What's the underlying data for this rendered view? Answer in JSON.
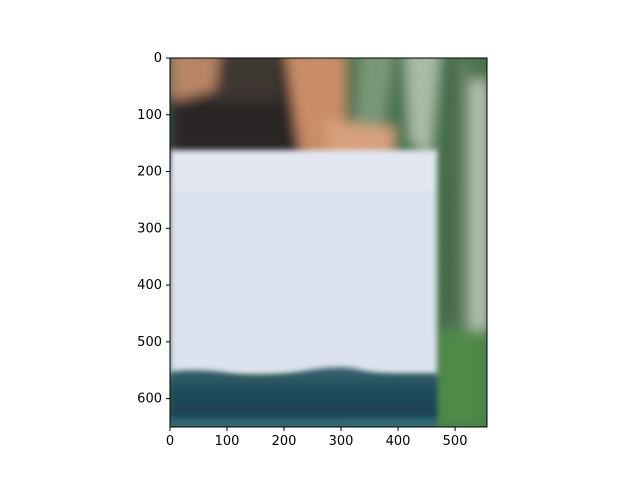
{
  "chart_data": {
    "type": "image",
    "title": "",
    "xlabel": "",
    "ylabel": "",
    "xlim": [
      0,
      556
    ],
    "ylim": [
      650,
      0
    ],
    "x_ticks": [
      {
        "value": 0,
        "label": "0"
      },
      {
        "value": 100,
        "label": "100"
      },
      {
        "value": 200,
        "label": "200"
      },
      {
        "value": 300,
        "label": "300"
      },
      {
        "value": 400,
        "label": "400"
      },
      {
        "value": 500,
        "label": "500"
      }
    ],
    "y_ticks": [
      {
        "value": 0,
        "label": "0"
      },
      {
        "value": 100,
        "label": "100"
      },
      {
        "value": 200,
        "label": "200"
      },
      {
        "value": 300,
        "label": "300"
      },
      {
        "value": 400,
        "label": "400"
      },
      {
        "value": 500,
        "label": "500"
      },
      {
        "value": 600,
        "label": "600"
      }
    ],
    "grid": false,
    "image_description_regions": {
      "foliage_color": "#3f6a45",
      "paper_color": "#dde3ee",
      "water_color": "#1f4a5a",
      "skin_color": "#c98d68",
      "shirt_color": "#2a2826"
    }
  }
}
